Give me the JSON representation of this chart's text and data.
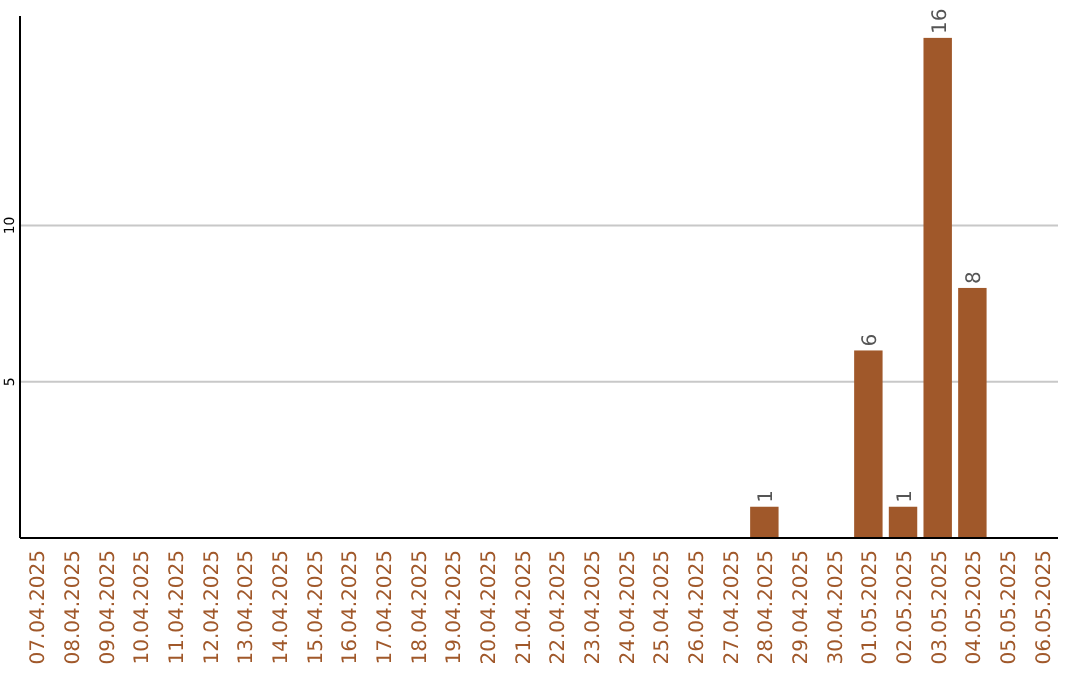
{
  "chart_data": {
    "type": "bar",
    "categories": [
      "07.04.2025",
      "08.04.2025",
      "09.04.2025",
      "10.04.2025",
      "11.04.2025",
      "12.04.2025",
      "13.04.2025",
      "14.04.2025",
      "15.04.2025",
      "16.04.2025",
      "17.04.2025",
      "18.04.2025",
      "19.04.2025",
      "20.04.2025",
      "21.04.2025",
      "22.04.2025",
      "23.04.2025",
      "24.04.2025",
      "25.04.2025",
      "26.04.2025",
      "27.04.2025",
      "28.04.2025",
      "29.04.2025",
      "30.04.2025",
      "01.05.2025",
      "02.05.2025",
      "03.05.2025",
      "04.05.2025",
      "05.05.2025",
      "06.05.2025"
    ],
    "values": [
      0,
      0,
      0,
      0,
      0,
      0,
      0,
      0,
      0,
      0,
      0,
      0,
      0,
      0,
      0,
      0,
      0,
      0,
      0,
      0,
      0,
      1,
      0,
      0,
      6,
      1,
      16,
      8,
      0,
      0
    ],
    "value_labels": [
      null,
      null,
      null,
      null,
      null,
      null,
      null,
      null,
      null,
      null,
      null,
      null,
      null,
      null,
      null,
      null,
      null,
      null,
      null,
      null,
      null,
      "1",
      null,
      null,
      "6",
      "1",
      "16",
      "8",
      null,
      null
    ],
    "color": "#a0582a",
    "ylim": [
      0,
      16.7
    ],
    "yticks": [
      5,
      10
    ],
    "grid": "y"
  }
}
